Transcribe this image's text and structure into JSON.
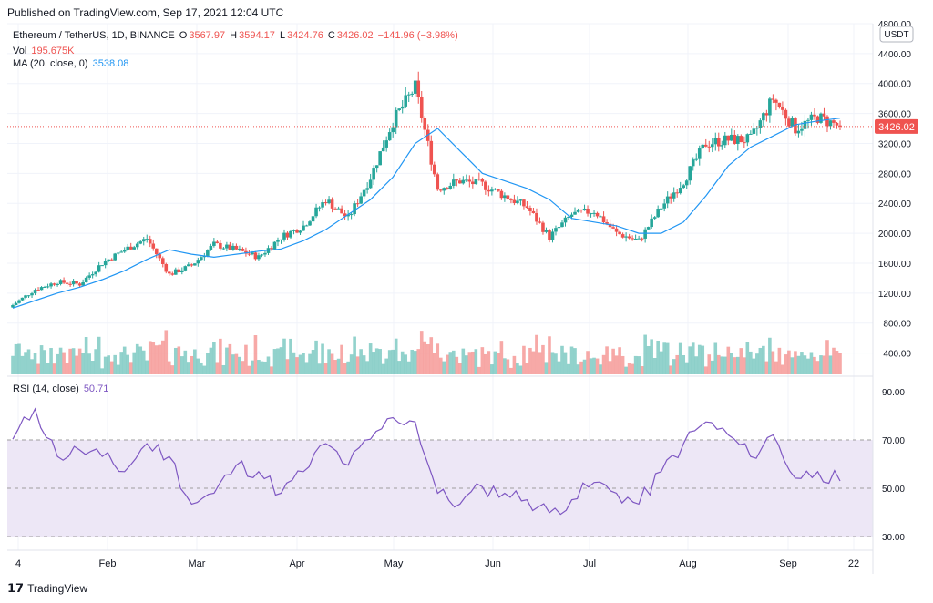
{
  "header": {
    "published": "Published on TradingView.com, Sep 17, 2021 12:04 UTC"
  },
  "legend": {
    "symbol": "Ethereum / TetherUS, 1D, BINANCE",
    "open_label": "O",
    "open": "3567.97",
    "high_label": "H",
    "high": "3594.17",
    "low_label": "L",
    "low": "3424.76",
    "close_label": "C",
    "close": "3426.02",
    "change": "−141.96 (−3.98%)",
    "vol_label": "Vol",
    "vol": "195.675K",
    "ma_label": "MA (20, close, 0)",
    "ma": "3538.08",
    "rsi_label": "RSI (14, close)",
    "rsi": "50.71"
  },
  "axis": {
    "currency": "USDT",
    "last_price_label": "3426.02"
  },
  "footer": {
    "brand": "TradingView"
  },
  "colors": {
    "up": "#26a69a",
    "down": "#ef5350",
    "ma": "#2196f3",
    "rsi": "#7e57c2",
    "rsi_band": "#ede7f6"
  },
  "chart_data": [
    {
      "type": "candlestick",
      "title": "Ethereum / TetherUS, 1D, BINANCE",
      "yticks": [
        400,
        800,
        1200,
        1600,
        2000,
        2400,
        2800,
        3200,
        3600,
        4000,
        4400,
        4800
      ],
      "ylim": [
        200,
        4800
      ],
      "xticks": [
        "4",
        "Feb",
        "Mar",
        "Apr",
        "May",
        "Jun",
        "Jul",
        "Aug",
        "Sep",
        "22"
      ],
      "last_price": 3426.02,
      "close_series_by_week": [
        {
          "date": "Jan 4",
          "close": 1040
        },
        {
          "date": "Jan 11",
          "close": 1250
        },
        {
          "date": "Jan 18",
          "close": 1350
        },
        {
          "date": "Jan 25",
          "close": 1320
        },
        {
          "date": "Feb 1",
          "close": 1600
        },
        {
          "date": "Feb 8",
          "close": 1780
        },
        {
          "date": "Feb 15",
          "close": 1930
        },
        {
          "date": "Feb 22",
          "close": 1450
        },
        {
          "date": "Mar 1",
          "close": 1570
        },
        {
          "date": "Mar 8",
          "close": 1850
        },
        {
          "date": "Mar 15",
          "close": 1780
        },
        {
          "date": "Mar 22",
          "close": 1680
        },
        {
          "date": "Mar 29",
          "close": 1950
        },
        {
          "date": "Apr 5",
          "close": 2100
        },
        {
          "date": "Apr 12",
          "close": 2450
        },
        {
          "date": "Apr 19",
          "close": 2200
        },
        {
          "date": "Apr 26",
          "close": 2750
        },
        {
          "date": "May 3",
          "close": 3500
        },
        {
          "date": "May 10",
          "close": 3950
        },
        {
          "date": "May 17",
          "close": 2600
        },
        {
          "date": "May 24",
          "close": 2700
        },
        {
          "date": "May 31",
          "close": 2650
        },
        {
          "date": "Jun 7",
          "close": 2500
        },
        {
          "date": "Jun 14",
          "close": 2350
        },
        {
          "date": "Jun 21",
          "close": 1950
        },
        {
          "date": "Jun 28",
          "close": 2250
        },
        {
          "date": "Jul 5",
          "close": 2300
        },
        {
          "date": "Jul 12",
          "close": 2000
        },
        {
          "date": "Jul 19",
          "close": 1900
        },
        {
          "date": "Jul 26",
          "close": 2350
        },
        {
          "date": "Aug 2",
          "close": 2700
        },
        {
          "date": "Aug 9",
          "close": 3200
        },
        {
          "date": "Aug 16",
          "close": 3250
        },
        {
          "date": "Aug 23",
          "close": 3250
        },
        {
          "date": "Aug 30",
          "close": 3800
        },
        {
          "date": "Sep 6",
          "close": 3400
        },
        {
          "date": "Sep 13",
          "close": 3550
        },
        {
          "date": "Sep 17",
          "close": 3426.02
        }
      ],
      "ma_series_by_week": [
        1000,
        1100,
        1200,
        1280,
        1380,
        1500,
        1650,
        1780,
        1720,
        1680,
        1720,
        1760,
        1790,
        1900,
        2050,
        2250,
        2450,
        2750,
        3200,
        3400,
        3100,
        2800,
        2700,
        2600,
        2450,
        2200,
        2150,
        2100,
        2000,
        2000,
        2150,
        2500,
        2900,
        3150,
        3300,
        3450,
        3500,
        3538.08
      ]
    },
    {
      "type": "bar",
      "title": "Vol",
      "last_value": "195.675K"
    },
    {
      "type": "line",
      "title": "RSI (14, close)",
      "yticks": [
        30,
        50,
        70,
        90
      ],
      "ylim": [
        25,
        92
      ],
      "band": [
        30,
        70
      ],
      "values_by_week": [
        70,
        84,
        62,
        65,
        62,
        55,
        68,
        62,
        40,
        45,
        58,
        55,
        45,
        55,
        68,
        58,
        70,
        80,
        78,
        45,
        40,
        48,
        45,
        42,
        36,
        42,
        50,
        45,
        40,
        55,
        68,
        78,
        72,
        62,
        72,
        52,
        55,
        50.71
      ]
    }
  ]
}
